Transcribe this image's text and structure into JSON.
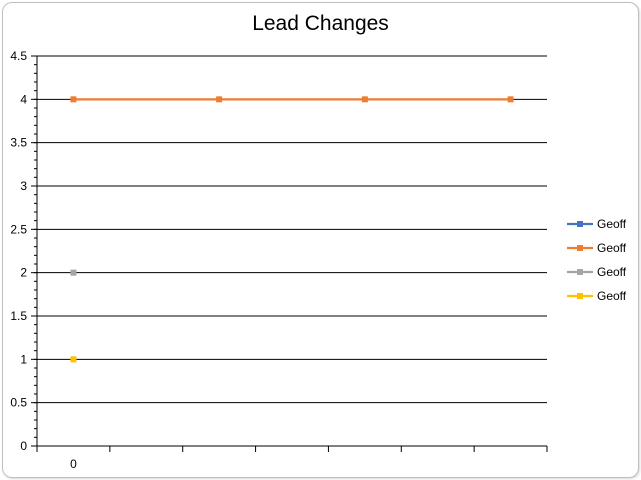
{
  "chart_data": {
    "type": "line",
    "title": "Lead Changes",
    "xlabel": "",
    "ylabel": "",
    "ylim": [
      0,
      4.5
    ],
    "y_major_step": 0.5,
    "y_minor_step": 0.1,
    "yticks": [
      "0",
      "0.5",
      "1",
      "1.5",
      "2",
      "2.5",
      "3",
      "3.5",
      "4",
      "4.5"
    ],
    "x_categories": 7,
    "xtick_labels": [
      "0",
      "",
      "",
      "",
      "",
      "",
      ""
    ],
    "grid": true,
    "legend_position": "right",
    "series": [
      {
        "name": "Geoff",
        "color": "#4472C4",
        "marker": "square",
        "points": []
      },
      {
        "name": "Geoff",
        "color": "#ED7D31",
        "marker": "square",
        "points": [
          [
            0,
            4
          ],
          [
            2,
            4
          ],
          [
            4,
            4
          ],
          [
            6,
            4
          ]
        ]
      },
      {
        "name": "Geoff",
        "color": "#A5A5A5",
        "marker": "square",
        "points": [
          [
            0,
            2
          ]
        ]
      },
      {
        "name": "Geoff",
        "color": "#FFC000",
        "marker": "square",
        "points": [
          [
            0,
            1
          ]
        ]
      }
    ]
  }
}
